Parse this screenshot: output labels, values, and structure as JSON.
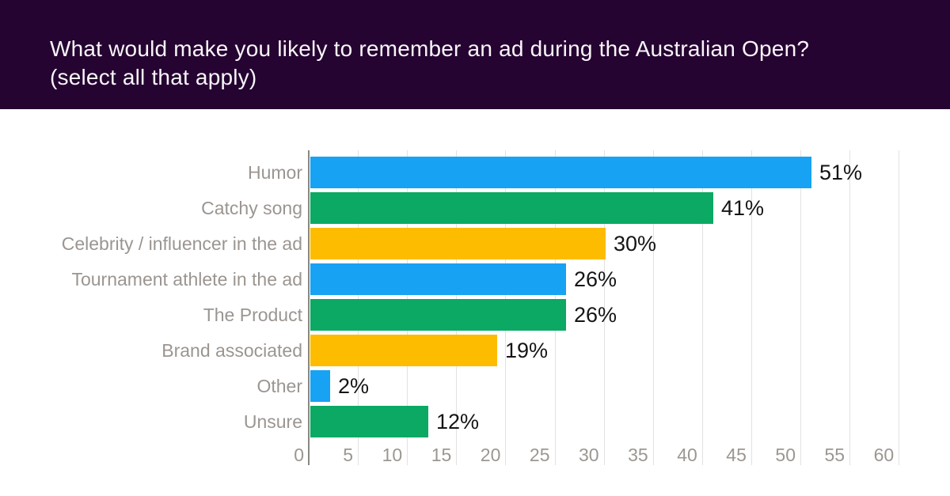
{
  "header": {
    "title_line1": "What would make you likely to remember an ad during the Australian Open?",
    "title_line2": "(select all that apply)"
  },
  "chart_data": {
    "type": "bar",
    "orientation": "horizontal",
    "title": "What would make you likely to remember an ad during the Australian Open? (select all that apply)",
    "categories": [
      "Humor",
      "Catchy song",
      "Celebrity / influencer in the ad",
      "Tournament athlete in the ad",
      "The Product",
      "Brand associated",
      "Other",
      "Unsure"
    ],
    "values": [
      51,
      41,
      30,
      26,
      26,
      19,
      2,
      12
    ],
    "value_labels": [
      "51%",
      "41%",
      "30%",
      "26%",
      "26%",
      "19%",
      "2%",
      "12%"
    ],
    "bar_colors": [
      "#17a2f3",
      "#0ba963",
      "#fdbc00",
      "#17a2f3",
      "#0ba963",
      "#fdbc00",
      "#17a2f3",
      "#0ba963"
    ],
    "x_ticks": [
      0,
      5,
      10,
      15,
      20,
      25,
      30,
      35,
      40,
      45,
      50,
      55,
      60
    ],
    "xlim": [
      0,
      60
    ],
    "xlabel": "",
    "ylabel": "",
    "grid": true,
    "legend": "none"
  },
  "colors": {
    "header_bg": "#250431",
    "title_text": "#f9f5f9",
    "category_label": "#9b9591",
    "tick_label": "#9c9691",
    "value_label": "#151515",
    "gridline": "#e4e2e0",
    "axis_line": "#8a8781",
    "background": "#ffffff"
  }
}
